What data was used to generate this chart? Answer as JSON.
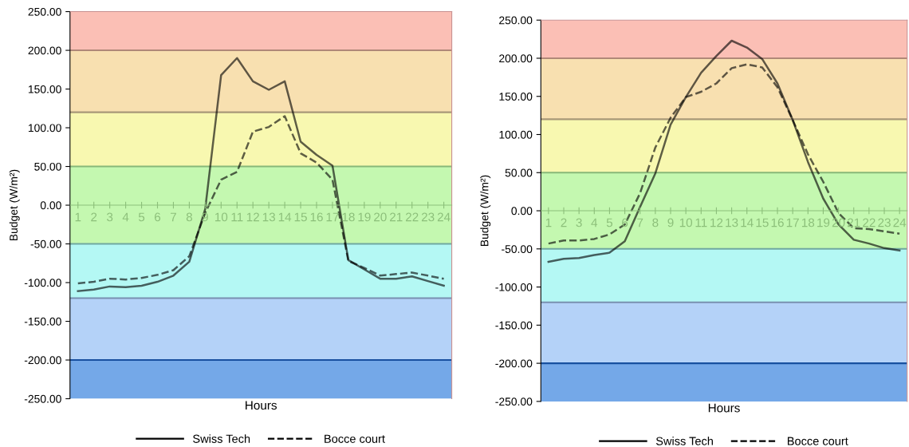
{
  "chart_data": [
    {
      "type": "line",
      "xlabel": "Hours",
      "ylabel": "Budget (W/m²)",
      "categories": [
        "1",
        "2",
        "3",
        "4",
        "5",
        "6",
        "7",
        "8",
        "9",
        "10",
        "11",
        "12",
        "13",
        "14",
        "15",
        "16",
        "17",
        "18",
        "19",
        "20",
        "21",
        "22",
        "23",
        "24"
      ],
      "series": [
        {
          "name": "Swiss Tech",
          "color": "#000000",
          "line_style": "solid",
          "values": [
            -111,
            -109,
            -105,
            -106,
            -104,
            -99,
            -91,
            -73,
            -5,
            168,
            190,
            160,
            149,
            160,
            82,
            65,
            51,
            -71,
            -83,
            -95,
            -95,
            -92,
            -98,
            -104
          ]
        },
        {
          "name": "Bocce court",
          "color": "#000000",
          "line_style": "dashed",
          "values": [
            -101,
            -99,
            -95,
            -96,
            -94,
            -90,
            -84,
            -66,
            -10,
            33,
            43,
            95,
            101,
            115,
            67,
            55,
            33,
            -72,
            -81,
            -91,
            -89,
            -87,
            -91,
            -95
          ]
        }
      ],
      "ylim": [
        -250,
        250
      ],
      "yticks": [
        {
          "value": -250,
          "label": "-250.00"
        },
        {
          "value": -200,
          "label": "-200.00"
        },
        {
          "value": -150,
          "label": "-150.00"
        },
        {
          "value": -100,
          "label": "-100.00"
        },
        {
          "value": -50,
          "label": "-50.00"
        },
        {
          "value": 0,
          "label": "0.00"
        },
        {
          "value": 50,
          "label": "50.00"
        },
        {
          "value": 100,
          "label": "100.00"
        },
        {
          "value": 150,
          "label": "150.00"
        },
        {
          "value": 200,
          "label": "200.00"
        },
        {
          "value": 250,
          "label": "250.00"
        }
      ],
      "bands": [
        {
          "axis": "y",
          "from": 200,
          "to": 250,
          "color": "#fbbfb5"
        },
        {
          "axis": "y",
          "from": 120,
          "to": 200,
          "color": "#f8e0b0"
        },
        {
          "axis": "y",
          "from": 50,
          "to": 120,
          "color": "#f8f8b0"
        },
        {
          "axis": "y",
          "from": -50,
          "to": 50,
          "color": "#c4f8b0"
        },
        {
          "axis": "y",
          "from": -120,
          "to": -50,
          "color": "#b4f8f4"
        },
        {
          "axis": "y",
          "from": -200,
          "to": -120,
          "color": "#b4d2f8"
        },
        {
          "axis": "y",
          "from": -250,
          "to": -200,
          "color": "#74a8e8"
        }
      ],
      "ref_lines": [
        {
          "axis": "y",
          "value": 200,
          "color": "#b08878"
        },
        {
          "axis": "y",
          "value": 120,
          "color": "#a89878"
        },
        {
          "axis": "y",
          "value": 50,
          "color": "#88b878"
        },
        {
          "axis": "y",
          "value": -50,
          "color": "#70a8a0"
        },
        {
          "axis": "y",
          "value": -120,
          "color": "#7890b0"
        },
        {
          "axis": "y",
          "value": -200,
          "color": "#1850a0"
        }
      ],
      "legend": "bottom",
      "grid": false
    },
    {
      "type": "line",
      "xlabel": "Hours",
      "ylabel": "Budget (W/m²)",
      "categories": [
        "1",
        "2",
        "3",
        "4",
        "5",
        "6",
        "7",
        "8",
        "9",
        "10",
        "11",
        "12",
        "13",
        "14",
        "15",
        "16",
        "17",
        "18",
        "19",
        "20",
        "21",
        "22",
        "23",
        "24"
      ],
      "series": [
        {
          "name": "Swiss Tech",
          "color": "#000000",
          "line_style": "solid",
          "values": [
            -67,
            -63,
            -62,
            -58,
            -55,
            -40,
            5,
            49,
            113,
            149,
            181,
            203,
            223,
            214,
            199,
            167,
            119,
            64,
            16,
            -18,
            -38,
            -43,
            -49,
            -52
          ]
        },
        {
          "name": "Bocce court",
          "color": "#000000",
          "line_style": "dashed",
          "values": [
            -43,
            -39,
            -39,
            -37,
            -31,
            -18,
            23,
            83,
            122,
            149,
            156,
            167,
            187,
            192,
            188,
            162,
            119,
            74,
            38,
            -3,
            -23,
            -24,
            -27,
            -30
          ]
        }
      ],
      "ylim": [
        -250,
        250
      ],
      "yticks": [
        {
          "value": -250,
          "label": "-250.00"
        },
        {
          "value": -200,
          "label": "-200.00"
        },
        {
          "value": -150,
          "label": "-150.00"
        },
        {
          "value": -100,
          "label": "-100.00"
        },
        {
          "value": -50,
          "label": "-50.00"
        },
        {
          "value": 0,
          "label": "0.00"
        },
        {
          "value": 50,
          "label": "50.00"
        },
        {
          "value": 100,
          "label": "100.00"
        },
        {
          "value": 150,
          "label": "150.00"
        },
        {
          "value": 200,
          "label": "200.00"
        },
        {
          "value": 250,
          "label": "250.00"
        }
      ],
      "bands": [
        {
          "axis": "y",
          "from": 200,
          "to": 250,
          "color": "#fbbfb5"
        },
        {
          "axis": "y",
          "from": 120,
          "to": 200,
          "color": "#f8e0b0"
        },
        {
          "axis": "y",
          "from": 50,
          "to": 120,
          "color": "#f8f8b0"
        },
        {
          "axis": "y",
          "from": -50,
          "to": 50,
          "color": "#c4f8b0"
        },
        {
          "axis": "y",
          "from": -120,
          "to": -50,
          "color": "#b4f8f4"
        },
        {
          "axis": "y",
          "from": -200,
          "to": -120,
          "color": "#b4d2f8"
        },
        {
          "axis": "y",
          "from": -250,
          "to": -200,
          "color": "#74a8e8"
        }
      ],
      "ref_lines": [
        {
          "axis": "y",
          "value": 200,
          "color": "#b08878"
        },
        {
          "axis": "y",
          "value": 120,
          "color": "#a89878"
        },
        {
          "axis": "y",
          "value": 50,
          "color": "#88b878"
        },
        {
          "axis": "y",
          "value": -50,
          "color": "#70a8a0"
        },
        {
          "axis": "y",
          "value": -120,
          "color": "#7890b0"
        },
        {
          "axis": "y",
          "value": -200,
          "color": "#1850a0"
        }
      ],
      "legend": "bottom",
      "grid": false
    }
  ]
}
